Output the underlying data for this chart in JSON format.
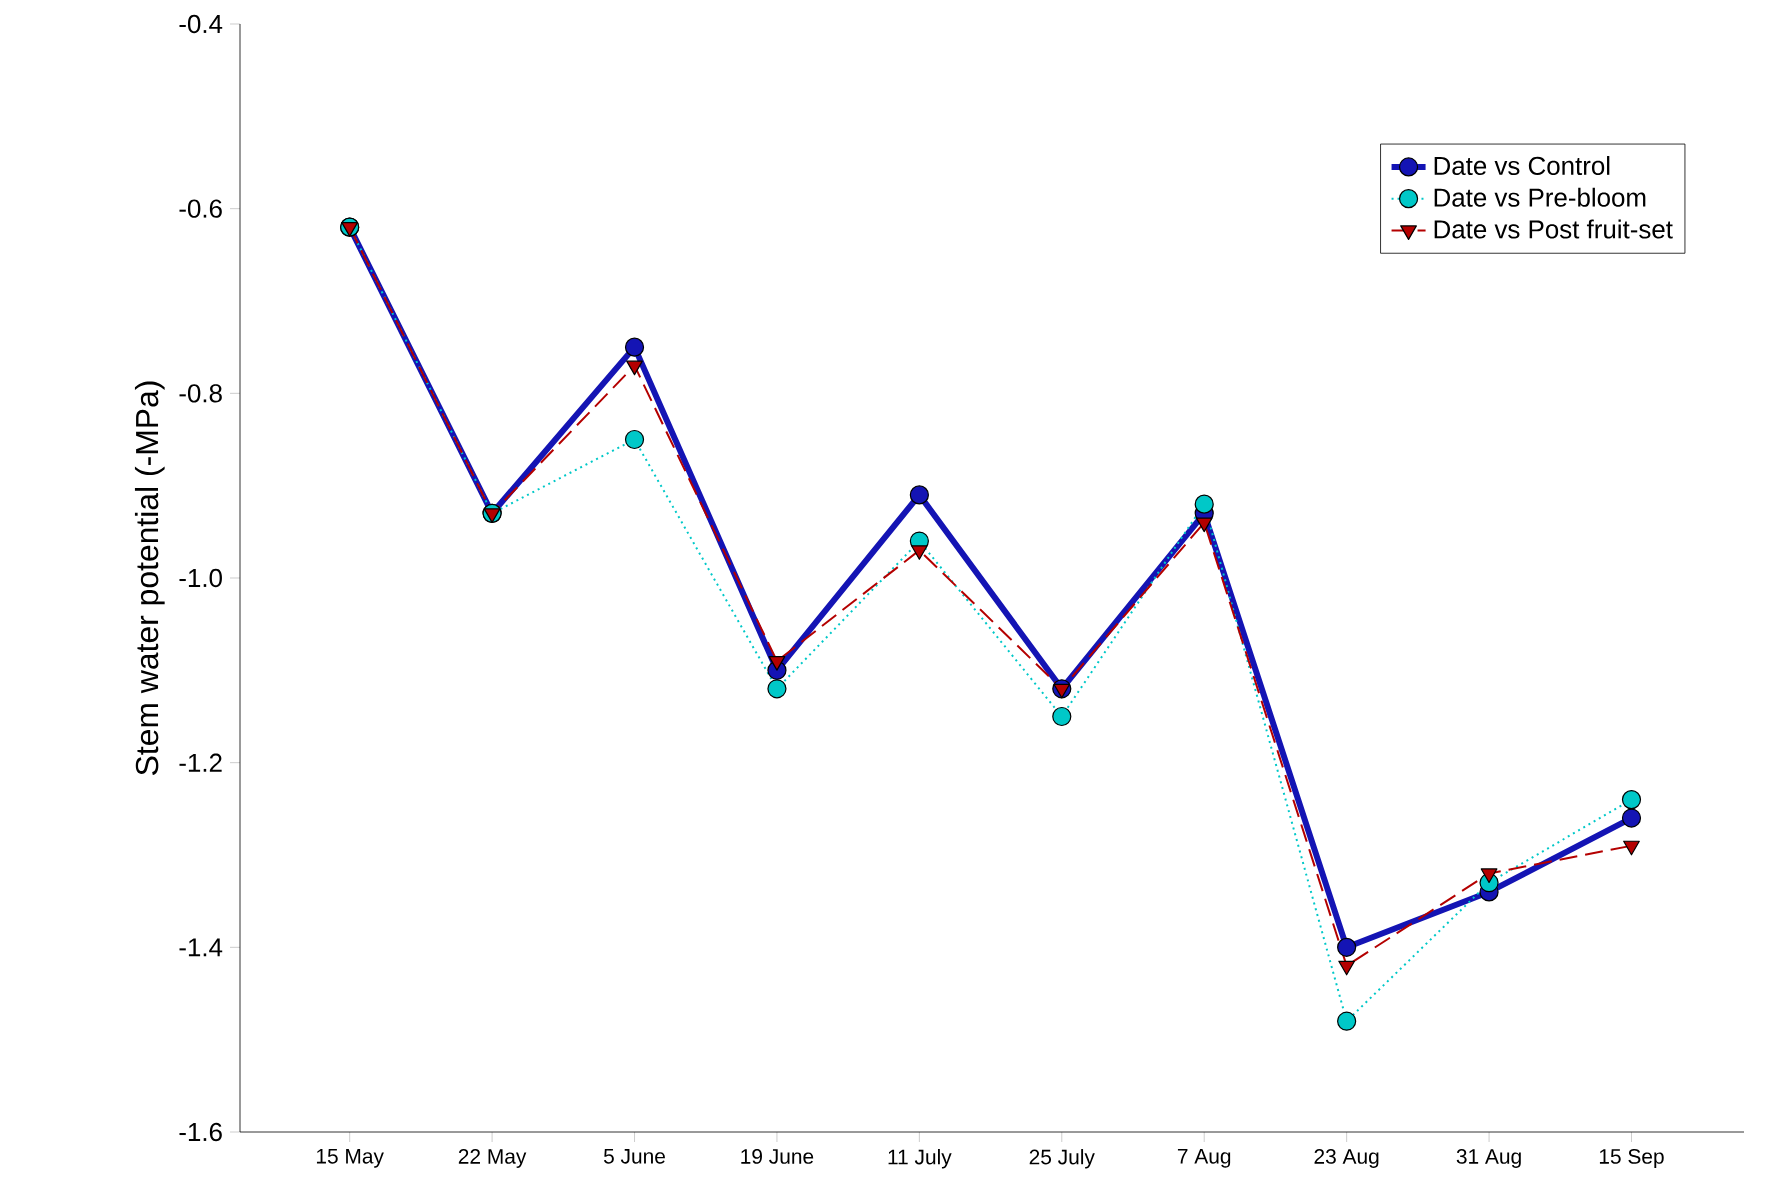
{
  "chart_data": {
    "type": "line",
    "ylabel": "Stem water potential (-MPa)",
    "categories": [
      "15 May",
      "22 May",
      "5 June",
      "19 June",
      "11 July",
      "25 July",
      "7 Aug",
      "23 Aug",
      "31 Aug",
      "15 Sep"
    ],
    "series": [
      {
        "name": "Date vs Control",
        "color": "#1414b4",
        "marker": "circle",
        "line_style": "solid",
        "values": [
          -0.62,
          -0.93,
          -0.75,
          -1.1,
          -0.91,
          -1.12,
          -0.93,
          -1.4,
          -1.34,
          -1.26
        ]
      },
      {
        "name": "Date vs Pre-bloom",
        "color": "#00c8c8",
        "marker": "circle",
        "line_style": "dotted",
        "values": [
          -0.62,
          -0.93,
          -0.85,
          -1.12,
          -0.96,
          -1.15,
          -0.92,
          -1.48,
          -1.33,
          -1.24
        ]
      },
      {
        "name": "Date vs Post fruit-set",
        "color": "#b40000",
        "marker": "triangle",
        "line_style": "dashed",
        "values": [
          -0.62,
          -0.93,
          -0.77,
          -1.09,
          -0.97,
          -1.12,
          -0.94,
          -1.42,
          -1.32,
          -1.29
        ]
      }
    ],
    "ylim": [
      -1.6,
      -0.4
    ],
    "yticks": [
      -1.6,
      -1.4,
      -1.2,
      {
        "value": -1.0,
        "label": "-1.0"
      },
      -0.8,
      -0.6,
      -0.4
    ],
    "legend": "top right"
  }
}
